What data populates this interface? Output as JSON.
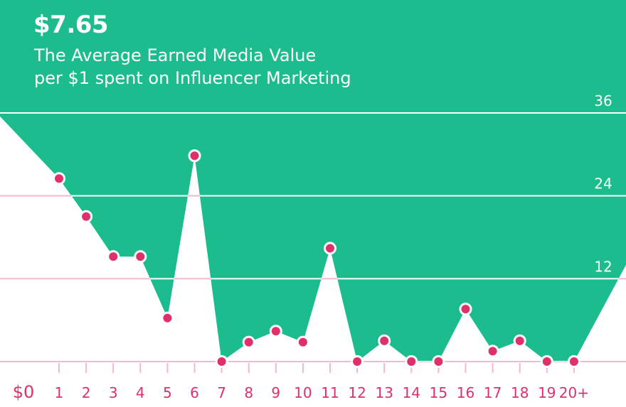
{
  "header": {
    "value": "$7.65",
    "subtitle_line1": "The Average Earned Media Value",
    "subtitle_line2": "per $1 spent on Influencer Marketing"
  },
  "colors": {
    "background": "#1cbc8f",
    "area": "#ffffff",
    "marker": "#e0306a",
    "tick_text": "#e0306a",
    "grid_on_green": "#ffffff",
    "grid_on_white": "#f5b8cc",
    "y_tick_text": "#ffffff"
  },
  "chart_data": {
    "type": "area",
    "title": "",
    "xlabel": "",
    "ylabel": "",
    "x_ticks": [
      "$0",
      "1",
      "2",
      "3",
      "4",
      "5",
      "6",
      "7",
      "8",
      "9",
      "10",
      "11",
      "12",
      "13",
      "14",
      "15",
      "16",
      "17",
      "18",
      "19",
      "20+"
    ],
    "y_ticks": [
      "0",
      "12",
      "24",
      "36"
    ],
    "ylim": [
      0,
      36
    ],
    "grid": true,
    "series": [
      {
        "points": [
          {
            "x": "$0",
            "y": 35.5,
            "marker": false
          },
          {
            "x": "1",
            "y": 26.5,
            "marker": true
          },
          {
            "x": "2",
            "y": 21,
            "marker": true
          },
          {
            "x": "3",
            "y": 15.2,
            "marker": true
          },
          {
            "x": "4",
            "y": 15.2,
            "marker": true
          },
          {
            "x": "5",
            "y": 6.3,
            "marker": true
          },
          {
            "x": "6",
            "y": 29.8,
            "marker": true
          },
          {
            "x": "7",
            "y": 0,
            "marker": true
          },
          {
            "x": "8",
            "y": 2.8,
            "marker": true
          },
          {
            "x": "9",
            "y": 4.4,
            "marker": true
          },
          {
            "x": "10",
            "y": 2.8,
            "marker": true
          },
          {
            "x": "11",
            "y": 16.4,
            "marker": true
          },
          {
            "x": "12",
            "y": 0,
            "marker": true
          },
          {
            "x": "13",
            "y": 3.0,
            "marker": true
          },
          {
            "x": "14",
            "y": 0,
            "marker": true
          },
          {
            "x": "15",
            "y": 0,
            "marker": true
          },
          {
            "x": "16",
            "y": 7.6,
            "marker": true
          },
          {
            "x": "17",
            "y": 1.5,
            "marker": true
          },
          {
            "x": "18",
            "y": 3.0,
            "marker": true
          },
          {
            "x": "19",
            "y": 0,
            "marker": true
          },
          {
            "x": "20+",
            "y": 0,
            "marker": true
          },
          {
            "x": "20+",
            "y": 14,
            "marker": false
          }
        ]
      }
    ]
  }
}
